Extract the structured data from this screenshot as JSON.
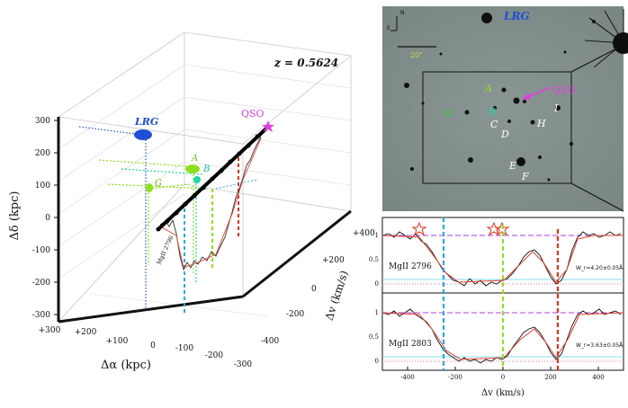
{
  "figure": {
    "left_panel": {
      "redshift_label": "z = 0.5624",
      "x_axis": {
        "label": "Δα (kpc)",
        "ticks": [
          "+300",
          "+200",
          "+100",
          "0",
          "-100",
          "-200",
          "-300"
        ]
      },
      "y_axis": {
        "label": "Δδ (kpc)",
        "ticks": [
          "300",
          "200",
          "100",
          "0",
          "-100",
          "-200",
          "-300"
        ]
      },
      "v_axis": {
        "label": "Δv (km/s)",
        "ticks": [
          "+400",
          "+200",
          "0",
          "-200",
          "-400"
        ]
      },
      "galaxies": [
        {
          "label": "LRG",
          "color": "#1f4fd6"
        },
        {
          "label": "A",
          "color": "#8fe01c"
        },
        {
          "label": "B",
          "color": "#1fd6a8"
        },
        {
          "label": "G",
          "color": "#8fe01c"
        }
      ],
      "qso_label": "QSO",
      "qso_color": "#e23ee0",
      "spectrum_label": "MgII 2796"
    },
    "image_panel": {
      "compass_n": "N",
      "compass_e": "E",
      "scale_bar": "20\"",
      "labels": [
        {
          "text": "LRG",
          "color": "#1f4fd6"
        },
        {
          "text": "A",
          "color": "#8fe01c"
        },
        {
          "text": "B",
          "color": "#1fd6a8"
        },
        {
          "text": "G",
          "color": "#2bd02b"
        },
        {
          "text": "QSO",
          "color": "#e23ee0"
        },
        {
          "text": "C",
          "color": "#ffffff"
        },
        {
          "text": "D",
          "color": "#ffffff"
        },
        {
          "text": "H",
          "color": "#ffffff"
        },
        {
          "text": "I",
          "color": "#ffffff"
        },
        {
          "text": "E",
          "color": "#ffffff"
        },
        {
          "text": "F",
          "color": "#ffffff"
        }
      ]
    },
    "spectra_panel": {
      "top": {
        "line": "MgII 2796",
        "ew": "W_r=4.20±0.05Å",
        "yticks": [
          "1",
          "0.5",
          "0"
        ]
      },
      "bottom": {
        "line": "MgII 2803",
        "ew": "W_r=3.63±0.05Å",
        "yticks": [
          "1",
          "0.5",
          "0"
        ]
      },
      "xlabel": "Δv (km/s)",
      "xticks": [
        "-400",
        "-200",
        "0",
        "200",
        "400"
      ]
    }
  }
}
